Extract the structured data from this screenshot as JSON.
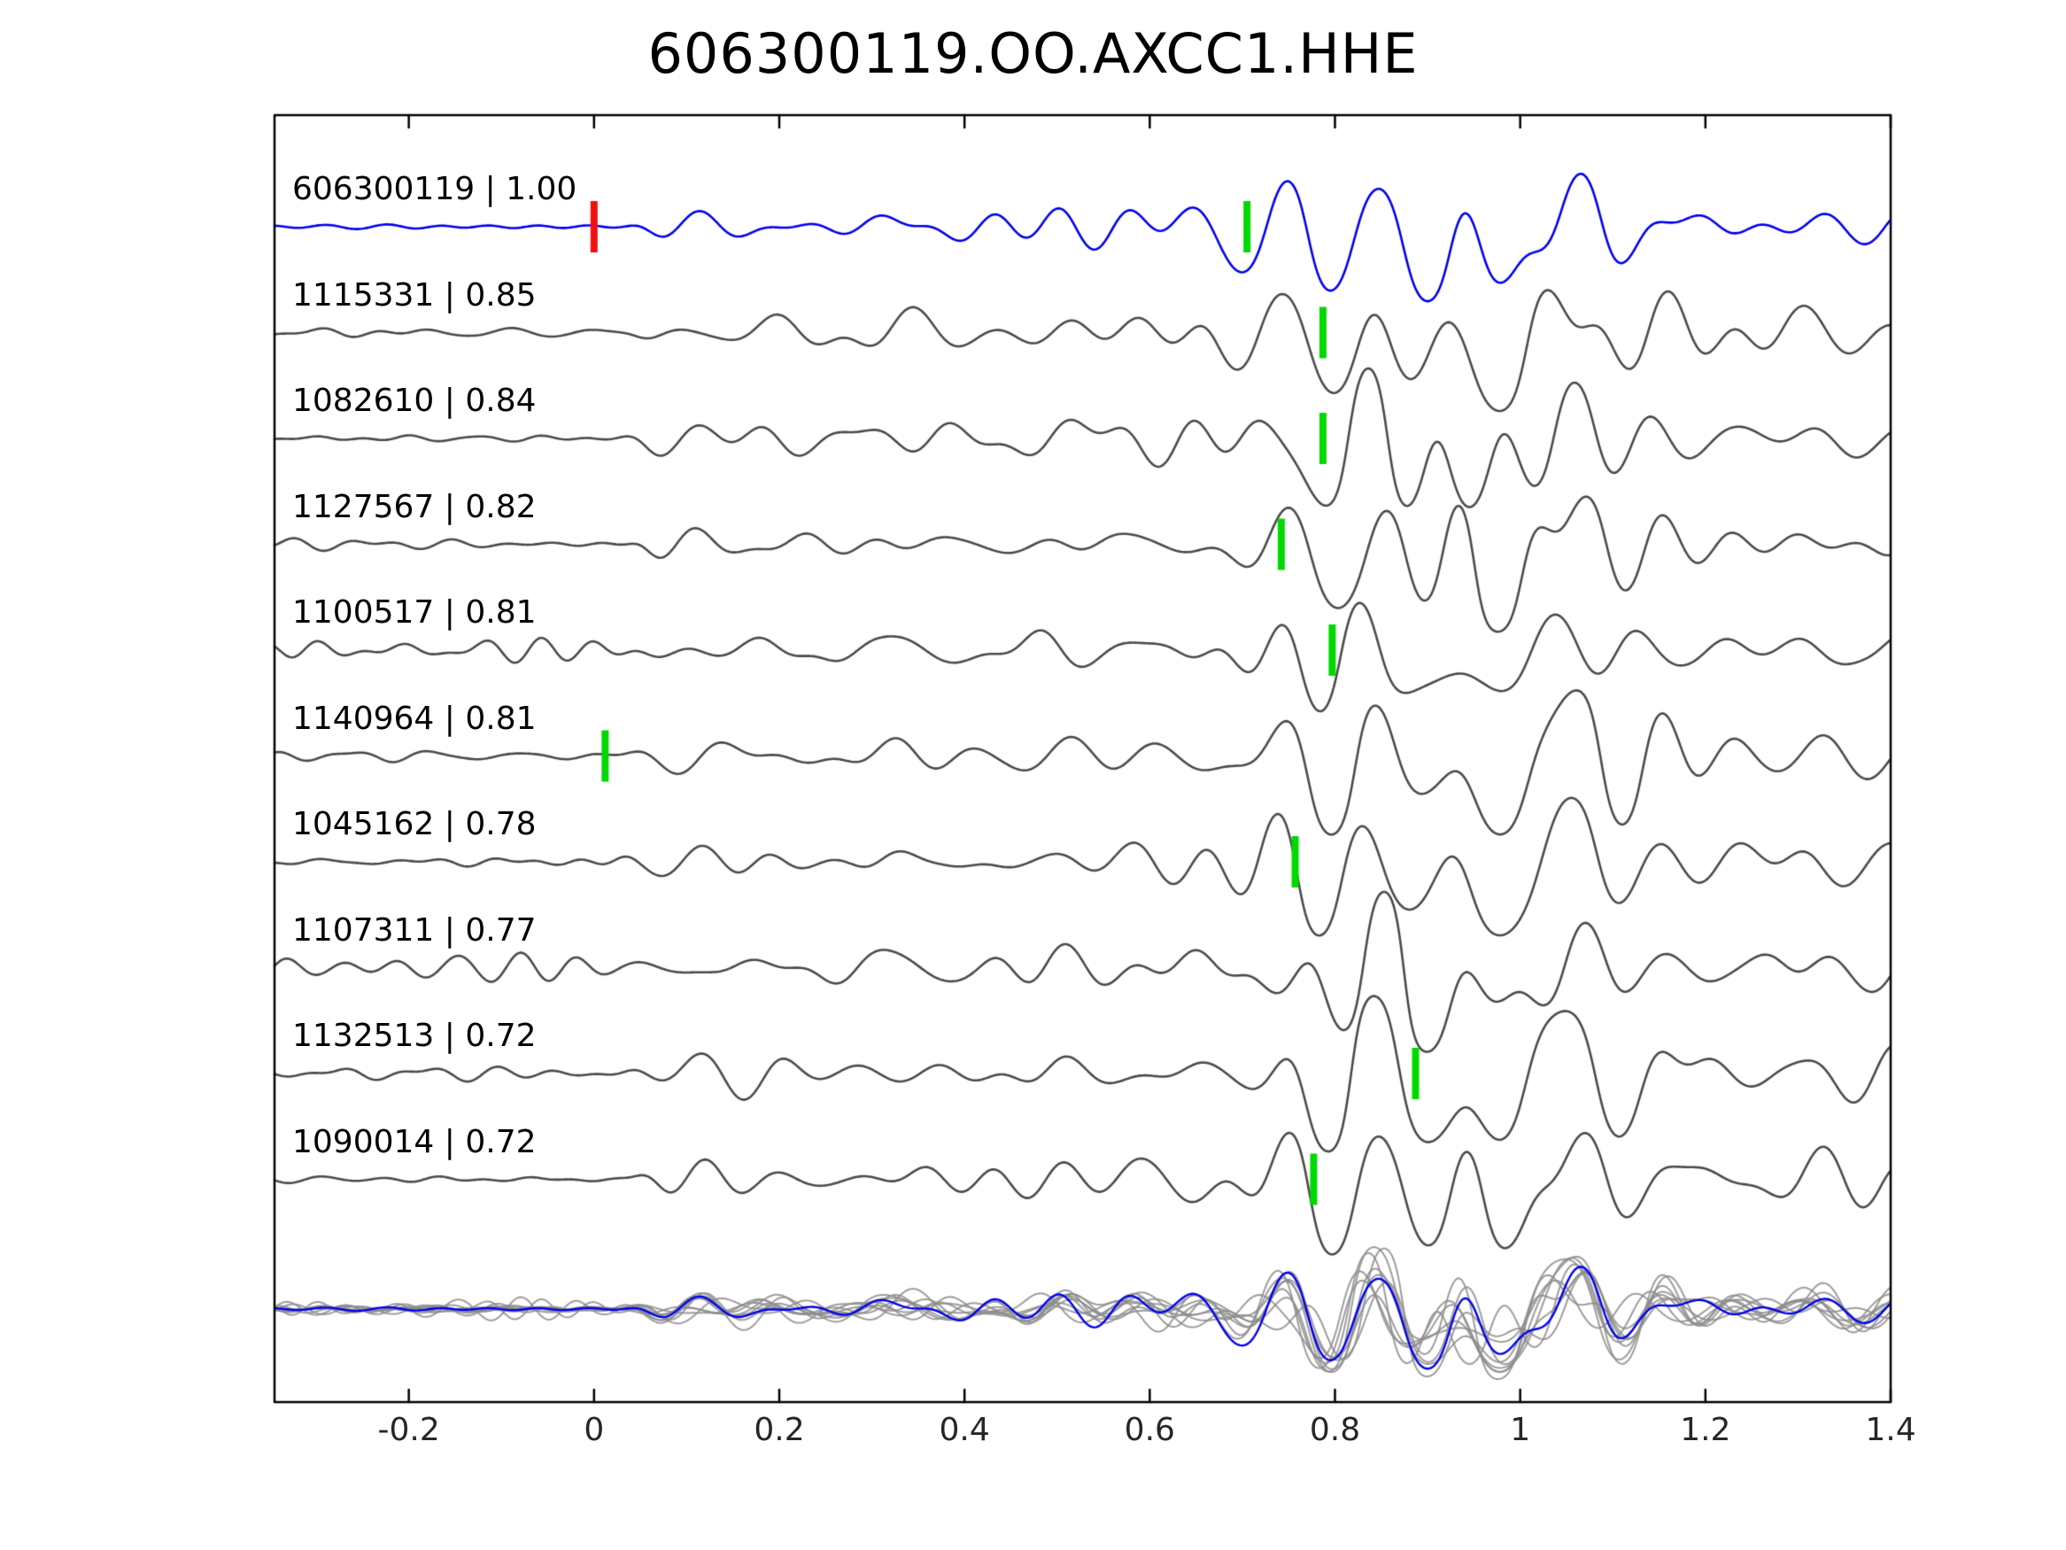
{
  "title": "606300119.OO.AXCC1.HHE",
  "chart_data": {
    "type": "line",
    "subtype": "seismic-waveform-template-match-stack",
    "title": "606300119.OO.AXCC1.HHE",
    "x_range": [
      -0.345,
      1.4
    ],
    "x_ticks": [
      -0.2,
      0,
      0.2,
      0.4,
      0.6,
      0.8,
      1,
      1.2,
      1.4
    ],
    "x_tick_labels": [
      "-0.2",
      "0",
      "0.2",
      "0.4",
      "0.6",
      "0.8",
      "1",
      "1.2",
      "1.4"
    ],
    "y_axis": "none",
    "grid": false,
    "legend": "none",
    "colors": {
      "template": "#0000ee",
      "detection": "#4a4a4a",
      "overlay_gray": "#8c8c8c",
      "pick_green": "#00d900",
      "pick_red": "#ee1111",
      "axis": "#000000",
      "tick_label": "#262626"
    },
    "traces": [
      {
        "id": "606300119",
        "cc": "1.00",
        "label": "606300119 | 1.00",
        "role": "template",
        "picks": [
          {
            "x": 0.0,
            "color": "red"
          },
          {
            "x": 0.705,
            "color": "green"
          }
        ],
        "pre_noise": 1.5,
        "amp": 1.0,
        "burst": 1.0,
        "shift": 0
      },
      {
        "id": "1115331",
        "cc": "0.85",
        "label": "1115331 | 0.85",
        "role": "detection",
        "picks": [
          {
            "x": 0.787,
            "color": "green"
          }
        ],
        "pre_noise": 2,
        "amp": 1.0,
        "burst": 1.05,
        "shift": 0.005
      },
      {
        "id": "1082610",
        "cc": "0.84",
        "label": "1082610 | 0.84",
        "role": "detection",
        "picks": [
          {
            "x": 0.787,
            "color": "green"
          }
        ],
        "pre_noise": 2,
        "amp": 1.0,
        "burst": 0.95,
        "shift": -0.004
      },
      {
        "id": "1127567",
        "cc": "0.82",
        "label": "1127567 | 0.82",
        "role": "detection",
        "picks": [
          {
            "x": 0.742,
            "color": "green"
          }
        ],
        "pre_noise": 2.5,
        "amp": 0.95,
        "burst": 1.05,
        "shift": 0.008
      },
      {
        "id": "1100517",
        "cc": "0.81",
        "label": "1100517 | 0.81",
        "role": "detection",
        "picks": [
          {
            "x": 0.797,
            "color": "green"
          }
        ],
        "pre_noise": 7,
        "amp": 0.85,
        "burst": 0.9,
        "shift": -0.01
      },
      {
        "id": "1140964",
        "cc": "0.81",
        "label": "1140964 | 0.81",
        "role": "detection",
        "picks": [
          {
            "x": 0.012,
            "color": "green"
          }
        ],
        "pre_noise": 2.5,
        "amp": 1.0,
        "burst": 1.0,
        "shift": 0.003
      },
      {
        "id": "1045162",
        "cc": "0.78",
        "label": "1045162 | 0.78",
        "role": "detection",
        "picks": [
          {
            "x": 0.757,
            "color": "green"
          }
        ],
        "pre_noise": 3,
        "amp": 1.0,
        "burst": 1.05,
        "shift": -0.006
      },
      {
        "id": "1107311",
        "cc": "0.77",
        "label": "1107311 | 0.77",
        "role": "detection",
        "picks": [],
        "pre_noise": 8,
        "amp": 1.05,
        "burst": 0.9,
        "shift": 0.01
      },
      {
        "id": "1132513",
        "cc": "0.72",
        "label": "1132513 | 0.72",
        "role": "detection",
        "picks": [
          {
            "x": 0.887,
            "color": "green"
          }
        ],
        "pre_noise": 5,
        "amp": 0.9,
        "burst": 1.0,
        "shift": -0.003
      },
      {
        "id": "1090014",
        "cc": "0.72",
        "label": "1090014 | 0.72",
        "role": "detection",
        "picks": [
          {
            "x": 0.777,
            "color": "green"
          }
        ],
        "pre_noise": 2,
        "amp": 0.95,
        "burst": 0.95,
        "shift": 0.006
      }
    ],
    "overlay_row": {
      "description": "all detection waveforms overlaid in gray with blue template on top",
      "has_template": true,
      "picks": []
    }
  }
}
